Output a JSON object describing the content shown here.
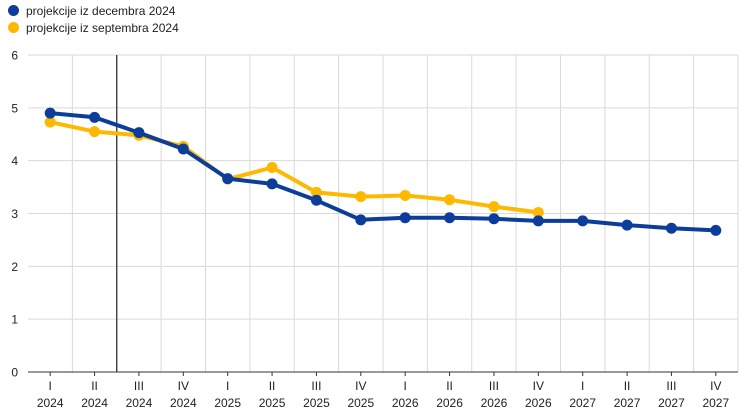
{
  "chart_data": {
    "type": "line",
    "categories": [
      [
        "I",
        "2024"
      ],
      [
        "II",
        "2024"
      ],
      [
        "III",
        "2024"
      ],
      [
        "IV",
        "2024"
      ],
      [
        "I",
        "2025"
      ],
      [
        "II",
        "2025"
      ],
      [
        "III",
        "2025"
      ],
      [
        "IV",
        "2025"
      ],
      [
        "I",
        "2026"
      ],
      [
        "II",
        "2026"
      ],
      [
        "III",
        "2026"
      ],
      [
        "IV",
        "2026"
      ],
      [
        "I",
        "2027"
      ],
      [
        "II",
        "2027"
      ],
      [
        "III",
        "2027"
      ],
      [
        "IV",
        "2027"
      ]
    ],
    "ylim": [
      0,
      6
    ],
    "yticks": [
      0,
      1,
      2,
      3,
      4,
      5,
      6
    ],
    "grid": true,
    "legend_position": "top-left",
    "vertical_marker_after_category_index": 1,
    "series": [
      {
        "name": "projekcije iz decembra 2024",
        "color": "#0d3d9a",
        "values": [
          4.9,
          4.82,
          4.53,
          4.22,
          3.66,
          3.56,
          3.25,
          2.88,
          2.92,
          2.92,
          2.9,
          2.86,
          2.86,
          2.78,
          2.72,
          2.68
        ]
      },
      {
        "name": "projekcije iz septembra 2024",
        "color": "#ffb800",
        "values": [
          4.73,
          4.55,
          4.48,
          4.27,
          3.65,
          3.87,
          3.4,
          3.32,
          3.34,
          3.26,
          3.13,
          3.02,
          null,
          null,
          null,
          null
        ]
      }
    ]
  }
}
